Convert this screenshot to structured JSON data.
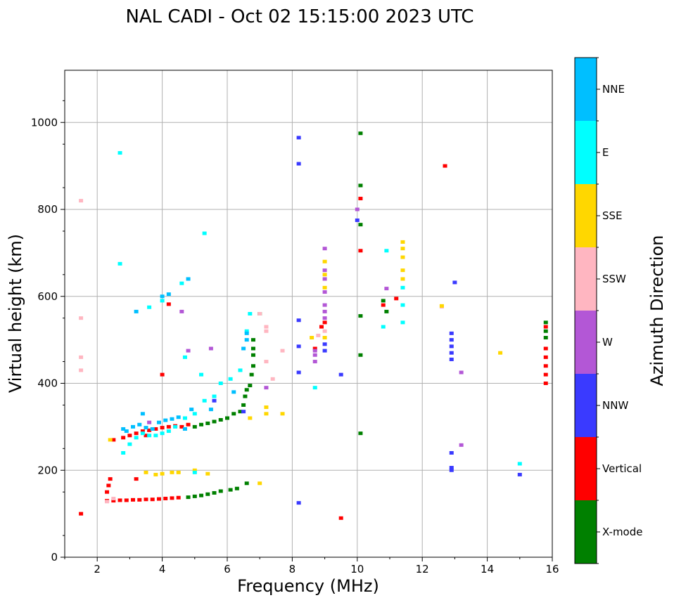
{
  "chart_data": {
    "type": "scatter",
    "title": "NAL CADI - Oct 02 15:15:00 2023 UTC",
    "xlabel": "Frequency (MHz)",
    "ylabel": "Virtual height (km)",
    "xlim": [
      1,
      16
    ],
    "ylim": [
      0,
      1120
    ],
    "xticks": [
      2,
      4,
      6,
      8,
      10,
      12,
      14,
      16
    ],
    "yticks": [
      0,
      200,
      400,
      600,
      800,
      1000
    ],
    "grid": true,
    "colorbar": {
      "label": "Azimuth Direction",
      "categories": [
        {
          "name": "X-mode",
          "color": "#008000"
        },
        {
          "name": "Vertical",
          "color": "#ff0000"
        },
        {
          "name": "NNW",
          "color": "#3a3aff"
        },
        {
          "name": "W",
          "color": "#b357d6"
        },
        {
          "name": "SSW",
          "color": "#ffb6c1"
        },
        {
          "name": "SSE",
          "color": "#ffd700"
        },
        {
          "name": "E",
          "color": "#00ffff"
        },
        {
          "name": "NNE",
          "color": "#00bfff"
        }
      ]
    },
    "series": [
      {
        "name": "X-mode",
        "points": [
          [
            4.8,
            138
          ],
          [
            5.0,
            140
          ],
          [
            5.2,
            142
          ],
          [
            5.4,
            145
          ],
          [
            5.6,
            148
          ],
          [
            5.8,
            152
          ],
          [
            6.1,
            155
          ],
          [
            6.3,
            158
          ],
          [
            6.6,
            170
          ],
          [
            5.0,
            300
          ],
          [
            5.2,
            305
          ],
          [
            5.4,
            308
          ],
          [
            5.6,
            312
          ],
          [
            5.8,
            316
          ],
          [
            6.0,
            320
          ],
          [
            6.2,
            330
          ],
          [
            6.4,
            335
          ],
          [
            6.5,
            350
          ],
          [
            6.55,
            370
          ],
          [
            6.6,
            385
          ],
          [
            6.7,
            395
          ],
          [
            6.75,
            420
          ],
          [
            6.8,
            440
          ],
          [
            6.8,
            465
          ],
          [
            6.8,
            480
          ],
          [
            6.8,
            500
          ],
          [
            7.0,
            560
          ],
          [
            10.1,
            285
          ],
          [
            10.1,
            465
          ],
          [
            10.1,
            555
          ],
          [
            10.1,
            765
          ],
          [
            10.1,
            855
          ],
          [
            10.1,
            975
          ],
          [
            10.9,
            565
          ],
          [
            10.8,
            590
          ],
          [
            15.8,
            540
          ],
          [
            15.8,
            520
          ],
          [
            15.8,
            505
          ]
        ]
      },
      {
        "name": "Vertical",
        "points": [
          [
            2.3,
            130
          ],
          [
            2.5,
            130
          ],
          [
            2.7,
            131
          ],
          [
            2.9,
            131
          ],
          [
            3.1,
            132
          ],
          [
            3.3,
            132
          ],
          [
            3.5,
            133
          ],
          [
            3.7,
            133
          ],
          [
            3.9,
            134
          ],
          [
            4.1,
            135
          ],
          [
            4.3,
            136
          ],
          [
            4.5,
            137
          ],
          [
            1.5,
            100
          ],
          [
            2.3,
            150
          ],
          [
            2.35,
            165
          ],
          [
            2.4,
            180
          ],
          [
            2.5,
            270
          ],
          [
            2.8,
            275
          ],
          [
            3.0,
            280
          ],
          [
            3.2,
            285
          ],
          [
            3.4,
            290
          ],
          [
            3.6,
            292
          ],
          [
            3.8,
            295
          ],
          [
            4.0,
            298
          ],
          [
            4.2,
            300
          ],
          [
            4.4,
            302
          ],
          [
            4.6,
            300
          ],
          [
            4.8,
            305
          ],
          [
            4.0,
            420
          ],
          [
            4.2,
            582
          ],
          [
            3.2,
            180
          ],
          [
            3.5,
            280
          ],
          [
            9.5,
            90
          ],
          [
            8.7,
            480
          ],
          [
            8.9,
            530
          ],
          [
            9.0,
            540
          ],
          [
            10.1,
            705
          ],
          [
            10.1,
            825
          ],
          [
            10.8,
            580
          ],
          [
            11.2,
            595
          ],
          [
            12.7,
            900
          ],
          [
            15.8,
            480
          ],
          [
            15.8,
            460
          ],
          [
            15.8,
            440
          ],
          [
            15.8,
            420
          ],
          [
            15.8,
            400
          ],
          [
            15.8,
            530
          ]
        ]
      },
      {
        "name": "NNW",
        "points": [
          [
            8.2,
            125
          ],
          [
            8.2,
            425
          ],
          [
            8.2,
            485
          ],
          [
            8.2,
            545
          ],
          [
            8.2,
            905
          ],
          [
            8.2,
            965
          ],
          [
            9.5,
            420
          ],
          [
            9.0,
            490
          ],
          [
            9.0,
            475
          ],
          [
            12.9,
            200
          ],
          [
            12.9,
            206
          ],
          [
            12.9,
            240
          ],
          [
            12.9,
            455
          ],
          [
            12.9,
            470
          ],
          [
            12.9,
            485
          ],
          [
            12.9,
            500
          ],
          [
            12.9,
            515
          ],
          [
            13.0,
            632
          ],
          [
            15.0,
            190
          ],
          [
            10.0,
            775
          ],
          [
            6.5,
            335
          ],
          [
            5.6,
            360
          ]
        ]
      },
      {
        "name": "W",
        "points": [
          [
            8.7,
            450
          ],
          [
            8.7,
            465
          ],
          [
            8.7,
            475
          ],
          [
            9.0,
            550
          ],
          [
            9.0,
            565
          ],
          [
            9.0,
            580
          ],
          [
            9.0,
            610
          ],
          [
            9.0,
            640
          ],
          [
            9.0,
            660
          ],
          [
            9.0,
            710
          ],
          [
            10.9,
            618
          ],
          [
            13.2,
            258
          ],
          [
            13.2,
            425
          ],
          [
            4.8,
            475
          ],
          [
            5.5,
            480
          ],
          [
            7.2,
            390
          ],
          [
            3.6,
            310
          ],
          [
            4.6,
            565
          ],
          [
            10.0,
            800
          ]
        ]
      },
      {
        "name": "SSW",
        "points": [
          [
            2.3,
            128
          ],
          [
            2.5,
            135
          ],
          [
            1.5,
            430
          ],
          [
            1.5,
            460
          ],
          [
            1.5,
            550
          ],
          [
            1.5,
            820
          ],
          [
            7.2,
            520
          ],
          [
            7.2,
            530
          ],
          [
            7.0,
            560
          ],
          [
            7.4,
            410
          ],
          [
            12.6,
            576
          ],
          [
            9.0,
            520
          ],
          [
            8.8,
            510
          ],
          [
            7.2,
            450
          ],
          [
            7.7,
            475
          ]
        ]
      },
      {
        "name": "SSE",
        "points": [
          [
            3.5,
            195
          ],
          [
            3.8,
            190
          ],
          [
            4.0,
            192
          ],
          [
            4.3,
            195
          ],
          [
            4.5,
            195
          ],
          [
            5.0,
            200
          ],
          [
            5.4,
            192
          ],
          [
            7.2,
            330
          ],
          [
            7.2,
            345
          ],
          [
            7.0,
            170
          ],
          [
            6.7,
            320
          ],
          [
            9.0,
            505
          ],
          [
            9.0,
            620
          ],
          [
            9.0,
            650
          ],
          [
            9.0,
            680
          ],
          [
            11.4,
            640
          ],
          [
            11.4,
            660
          ],
          [
            11.4,
            690
          ],
          [
            11.4,
            710
          ],
          [
            11.4,
            725
          ],
          [
            14.4,
            470
          ],
          [
            12.6,
            578
          ],
          [
            8.6,
            505
          ],
          [
            2.4,
            270
          ],
          [
            7.7,
            330
          ]
        ]
      },
      {
        "name": "E",
        "points": [
          [
            2.8,
            240
          ],
          [
            3.0,
            260
          ],
          [
            3.2,
            275
          ],
          [
            3.4,
            285
          ],
          [
            3.6,
            280
          ],
          [
            3.8,
            280
          ],
          [
            4.0,
            285
          ],
          [
            4.2,
            290
          ],
          [
            4.4,
            300
          ],
          [
            4.7,
            320
          ],
          [
            5.0,
            330
          ],
          [
            5.3,
            360
          ],
          [
            5.6,
            370
          ],
          [
            5.8,
            400
          ],
          [
            6.1,
            410
          ],
          [
            6.4,
            430
          ],
          [
            6.6,
            520
          ],
          [
            6.7,
            560
          ],
          [
            3.6,
            575
          ],
          [
            4.0,
            590
          ],
          [
            4.6,
            630
          ],
          [
            2.7,
            930
          ],
          [
            2.7,
            675
          ],
          [
            5.3,
            745
          ],
          [
            8.7,
            390
          ],
          [
            10.8,
            530
          ],
          [
            10.9,
            705
          ],
          [
            11.4,
            540
          ],
          [
            11.4,
            580
          ],
          [
            11.4,
            620
          ],
          [
            15.0,
            215
          ],
          [
            5.0,
            195
          ],
          [
            4.7,
            460
          ],
          [
            5.2,
            420
          ]
        ]
      },
      {
        "name": "NNE",
        "points": [
          [
            2.9,
            290
          ],
          [
            3.1,
            300
          ],
          [
            3.3,
            305
          ],
          [
            3.5,
            298
          ],
          [
            3.7,
            295
          ],
          [
            3.9,
            310
          ],
          [
            4.1,
            315
          ],
          [
            4.3,
            318
          ],
          [
            4.5,
            322
          ],
          [
            4.8,
            640
          ],
          [
            4.2,
            605
          ],
          [
            4.0,
            600
          ],
          [
            3.2,
            565
          ],
          [
            6.6,
            500
          ],
          [
            6.6,
            515
          ],
          [
            6.5,
            480
          ],
          [
            6.2,
            380
          ],
          [
            5.5,
            340
          ],
          [
            2.8,
            295
          ],
          [
            4.7,
            295
          ],
          [
            3.4,
            330
          ],
          [
            4.9,
            340
          ]
        ]
      }
    ]
  }
}
